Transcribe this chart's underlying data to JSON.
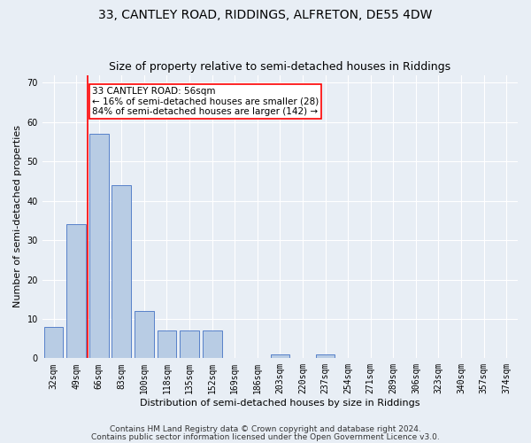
{
  "title": "33, CANTLEY ROAD, RIDDINGS, ALFRETON, DE55 4DW",
  "subtitle": "Size of property relative to semi-detached houses in Riddings",
  "xlabel": "Distribution of semi-detached houses by size in Riddings",
  "ylabel": "Number of semi-detached properties",
  "footer_line1": "Contains HM Land Registry data © Crown copyright and database right 2024.",
  "footer_line2": "Contains public sector information licensed under the Open Government Licence v3.0.",
  "categories": [
    "32sqm",
    "49sqm",
    "66sqm",
    "83sqm",
    "100sqm",
    "118sqm",
    "135sqm",
    "152sqm",
    "169sqm",
    "186sqm",
    "203sqm",
    "220sqm",
    "237sqm",
    "254sqm",
    "271sqm",
    "289sqm",
    "306sqm",
    "323sqm",
    "340sqm",
    "357sqm",
    "374sqm"
  ],
  "values": [
    8,
    34,
    57,
    44,
    12,
    7,
    7,
    7,
    0,
    0,
    1,
    0,
    1,
    0,
    0,
    0,
    0,
    0,
    0,
    0,
    0
  ],
  "bar_color": "#b8cce4",
  "bar_edge_color": "#4472c4",
  "vline_x": 1.5,
  "vline_color": "red",
  "annotation_title": "33 CANTLEY ROAD: 56sqm",
  "annotation_line1": "← 16% of semi-detached houses are smaller (28)",
  "annotation_line2": "84% of semi-detached houses are larger (142) →",
  "annotation_box_color": "white",
  "annotation_box_edge": "red",
  "ylim": [
    0,
    72
  ],
  "yticks": [
    0,
    10,
    20,
    30,
    40,
    50,
    60,
    70
  ],
  "background_color": "#e8eef5",
  "plot_bg_color": "#e8eef5",
  "grid_color": "white",
  "title_fontsize": 10,
  "subtitle_fontsize": 9,
  "axis_label_fontsize": 8,
  "tick_fontsize": 7,
  "annotation_fontsize": 7.5,
  "footer_fontsize": 6.5
}
